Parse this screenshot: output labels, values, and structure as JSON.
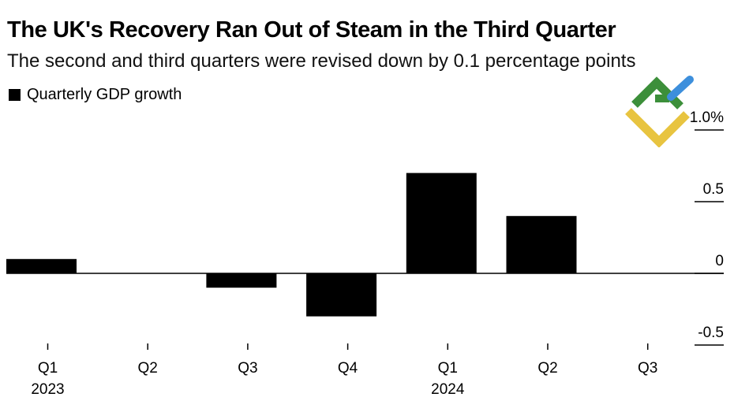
{
  "title": "The UK's Recovery Ran Out of Steam in the Third Quarter",
  "subtitle": "The second and third quarters were revised down by 0.1 percentage points",
  "legend": {
    "label": "Quarterly GDP growth"
  },
  "logo": {
    "icon": "fx-logo-icon"
  },
  "colors": {
    "bar": "#000000",
    "background": "#ffffff"
  },
  "chart_data": {
    "type": "bar",
    "title": "The UK's Recovery Ran Out of Steam in the Third Quarter",
    "subtitle": "The second and third quarters were revised down by 0.1 percentage points",
    "xlabel": "",
    "ylabel": "",
    "legend": [
      "Quarterly GDP growth"
    ],
    "categories": [
      "Q1",
      "Q2",
      "Q3",
      "Q4",
      "Q1",
      "Q2",
      "Q3"
    ],
    "year_labels": [
      "2023",
      "",
      "",
      "",
      "2024",
      "",
      ""
    ],
    "values": [
      0.1,
      0.0,
      -0.1,
      -0.3,
      0.7,
      0.4,
      0.0
    ],
    "ylim": [
      -0.6,
      1.0
    ],
    "yticks": [
      1.0,
      0.5,
      0,
      -0.5
    ],
    "ytick_labels": [
      "1.0%",
      "0.5",
      "0",
      "-0.5"
    ],
    "grid": false
  }
}
